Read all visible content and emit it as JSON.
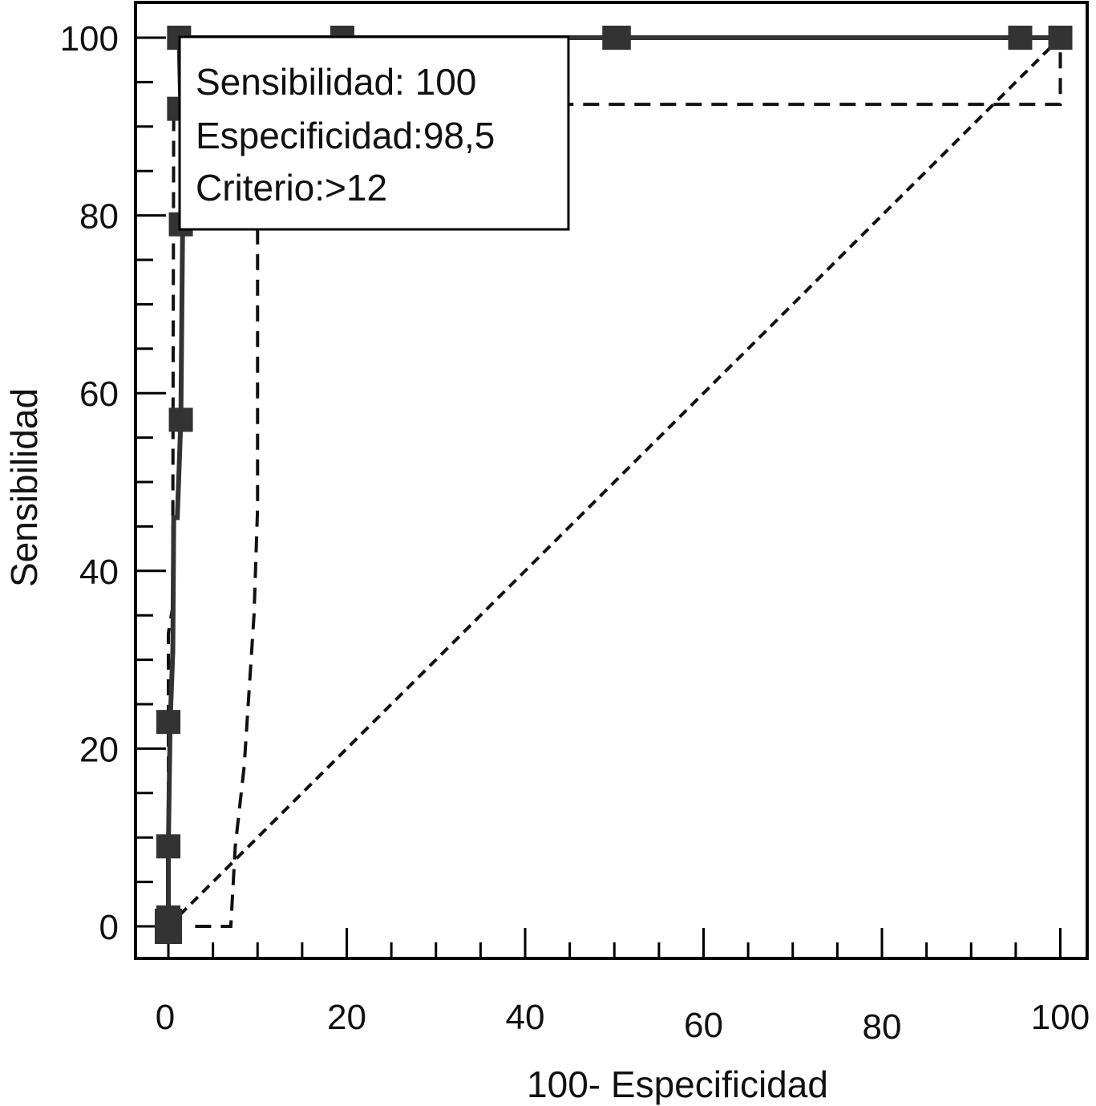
{
  "chart_data": {
    "type": "line",
    "title": "",
    "xlabel": "100- Especificidad",
    "ylabel": "Sensibilidad",
    "xlim": [
      -4,
      103
    ],
    "ylim": [
      -4,
      104
    ],
    "xticks": [
      "0",
      "20",
      "40",
      "60",
      "80",
      "100"
    ],
    "yticks": [
      "0",
      "20",
      "40",
      "60",
      "80",
      "100"
    ],
    "xtick_values": [
      0,
      20,
      40,
      60,
      80,
      100
    ],
    "ytick_values": [
      0,
      20,
      40,
      60,
      80,
      100
    ],
    "grid": false,
    "series": [
      {
        "role": "roc-curve",
        "style": "solid",
        "markers": "square",
        "x": [
          0,
          0,
          0,
          0.2,
          0.5,
          0.6,
          1.0,
          1.4,
          1.6,
          1.4,
          1.2,
          19.5,
          50,
          50.5,
          95.5,
          100
        ],
        "y": [
          0,
          1,
          9,
          23,
          31,
          46,
          46,
          57,
          79,
          92,
          100,
          100,
          100,
          100,
          100,
          100
        ],
        "marker_points": [
          [
            0,
            1
          ],
          [
            0,
            9
          ],
          [
            0,
            23
          ],
          [
            1.4,
            57
          ],
          [
            1.4,
            79
          ],
          [
            1.2,
            92
          ],
          [
            1.2,
            100
          ],
          [
            19.5,
            100
          ],
          [
            50,
            100
          ],
          [
            50.5,
            100
          ],
          [
            95.5,
            100
          ],
          [
            100,
            100
          ]
        ]
      },
      {
        "role": "upper-confidence-bound",
        "style": "dashed",
        "x": [
          0,
          0,
          0.5,
          0.5,
          0.6,
          100,
          100
        ],
        "y": [
          0,
          33,
          36,
          46,
          92.5,
          92.5,
          100
        ]
      },
      {
        "role": "lower-confidence-bound",
        "style": "dashed",
        "x": [
          3,
          7,
          7.5,
          8.5,
          9.6,
          10,
          10,
          10,
          100
        ],
        "y": [
          0,
          0,
          9,
          18,
          35,
          47,
          79,
          100,
          100
        ]
      },
      {
        "role": "reference-diagonal",
        "style": "dotted",
        "x": [
          0,
          100
        ],
        "y": [
          0,
          100
        ]
      }
    ],
    "annotation": {
      "lines": [
        "Sensibilidad: 100",
        "Especificidad:98,5",
        "Criterio:>12"
      ]
    },
    "colors": {
      "curve": "#333333",
      "dashed": "#111111",
      "axis": "#000000"
    }
  }
}
